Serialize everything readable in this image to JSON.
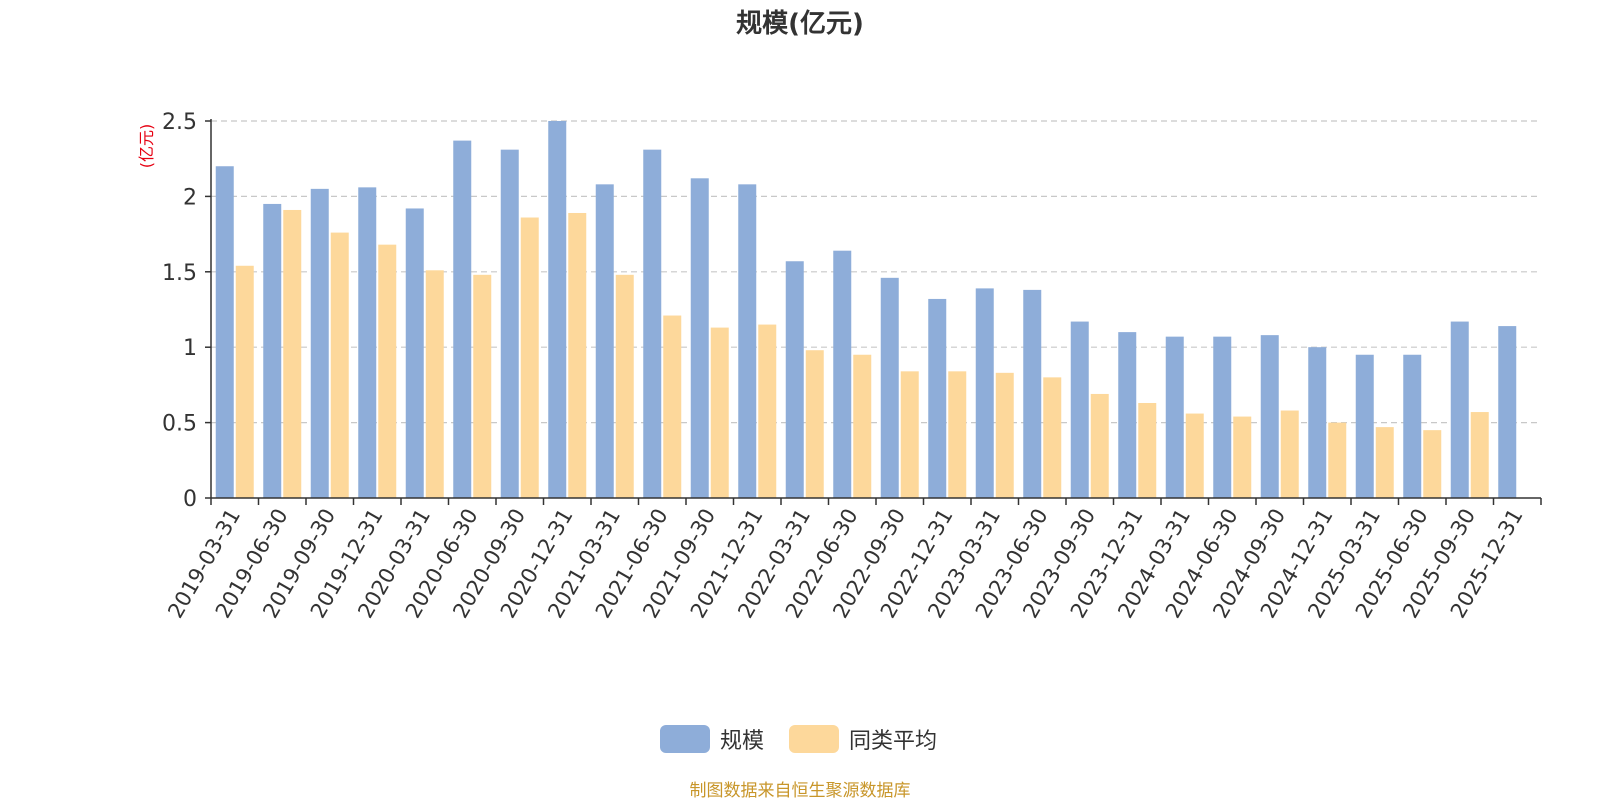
{
  "chart_data": {
    "type": "bar",
    "title": "规模(亿元)",
    "ylabel": "(亿元)",
    "xlabel": "",
    "ylim": [
      0,
      2.5
    ],
    "yticks": [
      "0",
      "0.5",
      "1",
      "1.5",
      "2",
      "2.5"
    ],
    "grid": "horizontal-dashed",
    "legend_position": "bottom-center",
    "categories": [
      "2019-03-31",
      "2019-06-30",
      "2019-09-30",
      "2019-12-31",
      "2020-03-31",
      "2020-06-30",
      "2020-09-30",
      "2020-12-31",
      "2021-03-31",
      "2021-06-30",
      "2021-09-30",
      "2021-12-31",
      "2022-03-31",
      "2022-06-30",
      "2022-09-30",
      "2022-12-31",
      "2023-03-31",
      "2023-06-30",
      "2023-09-30",
      "2023-12-31",
      "2024-03-31",
      "2024-06-30",
      "2024-09-30",
      "2024-12-31",
      "2025-03-31",
      "2025-06-30",
      "2025-09-30",
      "2025-12-31"
    ],
    "series": [
      {
        "name": "规模",
        "color": "#8eadd9",
        "values": [
          2.2,
          1.95,
          2.05,
          2.06,
          1.92,
          2.37,
          2.31,
          2.5,
          2.08,
          2.31,
          2.12,
          2.08,
          1.57,
          1.64,
          1.46,
          1.32,
          1.39,
          1.38,
          1.17,
          1.1,
          1.07,
          1.07,
          1.08,
          1.0,
          0.95,
          0.95,
          1.17,
          1.14
        ]
      },
      {
        "name": "同类平均",
        "color": "#fdd89b",
        "values": [
          1.54,
          1.91,
          1.76,
          1.68,
          1.51,
          1.48,
          1.86,
          1.89,
          1.48,
          1.21,
          1.13,
          1.15,
          0.98,
          0.95,
          0.84,
          0.84,
          0.83,
          0.8,
          0.69,
          0.63,
          0.56,
          0.54,
          0.58,
          0.5,
          0.47,
          0.45,
          0.57,
          null
        ]
      }
    ]
  },
  "legend": {
    "items": [
      {
        "label": "规模",
        "color": "#8eadd9"
      },
      {
        "label": "同类平均",
        "color": "#fdd89b"
      }
    ]
  },
  "source": "制图数据来自恒生聚源数据库"
}
